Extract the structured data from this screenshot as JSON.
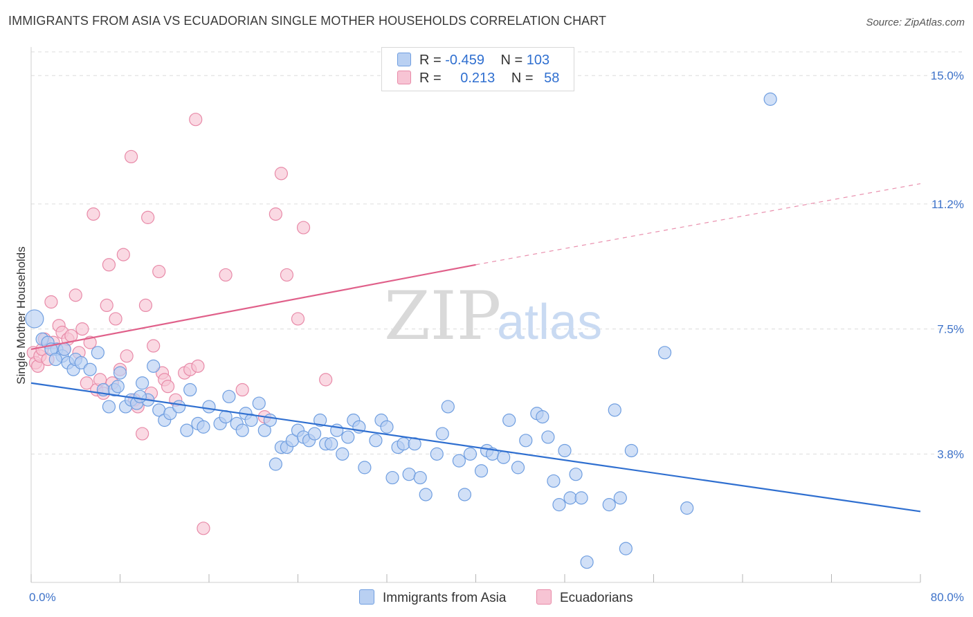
{
  "title": "IMMIGRANTS FROM ASIA VS ECUADORIAN SINGLE MOTHER HOUSEHOLDS CORRELATION CHART",
  "source": "Source: ZipAtlas.com",
  "watermark": {
    "zip": "ZIP",
    "atlas": "atlas"
  },
  "legend": {
    "rows": [
      {
        "r_label": "R =",
        "r_value": "-0.459",
        "n_label": "N =",
        "n_value": "103"
      },
      {
        "r_label": "R =",
        "r_value": "0.213",
        "n_label": "N =",
        "n_value": "58"
      }
    ]
  },
  "colors": {
    "blue_fill": "#b9d0f2",
    "blue_stroke": "#6f9ee0",
    "blue_line": "#2f6fd0",
    "pink_fill": "#f7c4d4",
    "pink_stroke": "#e88aa8",
    "pink_line": "#e0608a",
    "tick_text": "#3d72c9",
    "grid": "#dcdcdc"
  },
  "chart_data": {
    "type": "scatter",
    "xlabel": "",
    "ylabel": "Single Mother Households",
    "xlim": [
      0,
      80
    ],
    "ylim": [
      0,
      15.7
    ],
    "x_tick_labels": [
      "0.0%",
      "80.0%"
    ],
    "y_ticks": [
      3.8,
      7.5,
      11.2,
      15.0
    ],
    "y_tick_labels": [
      "3.8%",
      "7.5%",
      "11.2%",
      "15.0%"
    ],
    "grid": true,
    "legend_position": "bottom-center",
    "series": [
      {
        "name": "Immigrants from Asia",
        "color": "#b9d0f2",
        "trend": {
          "x": [
            0,
            80
          ],
          "y": [
            5.9,
            2.1
          ],
          "style": "solid"
        },
        "points": [
          [
            0.3,
            7.8
          ],
          [
            1.0,
            7.2
          ],
          [
            1.5,
            7.1
          ],
          [
            2.3,
            6.9
          ],
          [
            2.8,
            6.7
          ],
          [
            3.3,
            6.5
          ],
          [
            3.8,
            6.3
          ],
          [
            4.0,
            6.6
          ],
          [
            4.5,
            6.5
          ],
          [
            5.3,
            6.3
          ],
          [
            6.0,
            6.8
          ],
          [
            6.5,
            5.7
          ],
          [
            7.0,
            5.2
          ],
          [
            7.5,
            5.7
          ],
          [
            8.0,
            6.2
          ],
          [
            8.5,
            5.2
          ],
          [
            9.0,
            5.4
          ],
          [
            9.5,
            5.3
          ],
          [
            10.0,
            5.9
          ],
          [
            10.5,
            5.4
          ],
          [
            11.0,
            6.4
          ],
          [
            11.5,
            5.1
          ],
          [
            12.0,
            4.8
          ],
          [
            12.5,
            5.0
          ],
          [
            13.3,
            5.2
          ],
          [
            14.0,
            4.5
          ],
          [
            14.3,
            5.7
          ],
          [
            15.0,
            4.7
          ],
          [
            15.5,
            4.6
          ],
          [
            16.0,
            5.2
          ],
          [
            17.0,
            4.7
          ],
          [
            17.5,
            4.9
          ],
          [
            17.8,
            5.5
          ],
          [
            18.5,
            4.7
          ],
          [
            19.0,
            4.5
          ],
          [
            19.3,
            5.0
          ],
          [
            19.8,
            4.8
          ],
          [
            20.5,
            5.3
          ],
          [
            21.0,
            4.5
          ],
          [
            21.5,
            4.8
          ],
          [
            22.0,
            3.5
          ],
          [
            22.5,
            4.0
          ],
          [
            23.0,
            4.0
          ],
          [
            23.5,
            4.2
          ],
          [
            24.0,
            4.5
          ],
          [
            24.5,
            4.3
          ],
          [
            25.0,
            4.2
          ],
          [
            25.5,
            4.4
          ],
          [
            26.0,
            4.8
          ],
          [
            26.5,
            4.1
          ],
          [
            27.0,
            4.1
          ],
          [
            27.5,
            4.5
          ],
          [
            28.0,
            3.8
          ],
          [
            28.5,
            4.3
          ],
          [
            29.0,
            4.8
          ],
          [
            29.5,
            4.6
          ],
          [
            30.0,
            3.4
          ],
          [
            31.0,
            4.2
          ],
          [
            31.5,
            4.8
          ],
          [
            32.0,
            4.6
          ],
          [
            32.5,
            3.1
          ],
          [
            33.0,
            4.0
          ],
          [
            33.5,
            4.1
          ],
          [
            34.0,
            3.2
          ],
          [
            34.5,
            4.1
          ],
          [
            35.0,
            3.1
          ],
          [
            35.5,
            2.6
          ],
          [
            36.5,
            3.8
          ],
          [
            37.0,
            4.4
          ],
          [
            37.5,
            5.2
          ],
          [
            38.5,
            3.6
          ],
          [
            39.0,
            2.6
          ],
          [
            39.5,
            3.8
          ],
          [
            40.5,
            3.3
          ],
          [
            41.0,
            3.9
          ],
          [
            41.5,
            3.8
          ],
          [
            42.5,
            3.7
          ],
          [
            43.0,
            4.8
          ],
          [
            43.8,
            3.4
          ],
          [
            44.5,
            4.2
          ],
          [
            45.5,
            5.0
          ],
          [
            46.0,
            4.9
          ],
          [
            46.5,
            4.3
          ],
          [
            47.0,
            3.0
          ],
          [
            47.5,
            2.3
          ],
          [
            48.0,
            3.9
          ],
          [
            48.5,
            2.5
          ],
          [
            49.0,
            3.2
          ],
          [
            49.5,
            2.5
          ],
          [
            50.0,
            0.6
          ],
          [
            52.0,
            2.3
          ],
          [
            52.5,
            5.1
          ],
          [
            53.0,
            2.5
          ],
          [
            53.5,
            1.0
          ],
          [
            54.0,
            3.9
          ],
          [
            57.0,
            6.8
          ],
          [
            59.0,
            2.2
          ],
          [
            66.5,
            14.3
          ],
          [
            1.8,
            6.9
          ],
          [
            2.2,
            6.6
          ],
          [
            3.0,
            6.9
          ],
          [
            7.8,
            5.8
          ],
          [
            9.8,
            5.5
          ]
        ]
      },
      {
        "name": "Ecuadorians",
        "color": "#f7c4d4",
        "trend": {
          "x": [
            0,
            40,
            80
          ],
          "y": [
            6.9,
            9.4,
            11.8
          ],
          "style": "solid-then-dashed"
        },
        "points": [
          [
            0.2,
            6.8
          ],
          [
            0.4,
            6.5
          ],
          [
            0.6,
            6.4
          ],
          [
            0.8,
            6.7
          ],
          [
            1.0,
            6.9
          ],
          [
            1.2,
            7.2
          ],
          [
            1.5,
            6.6
          ],
          [
            1.8,
            8.3
          ],
          [
            2.0,
            7.1
          ],
          [
            2.5,
            7.6
          ],
          [
            2.8,
            7.4
          ],
          [
            3.0,
            6.9
          ],
          [
            3.3,
            7.2
          ],
          [
            3.6,
            7.3
          ],
          [
            4.0,
            8.5
          ],
          [
            4.3,
            6.8
          ],
          [
            4.6,
            7.5
          ],
          [
            5.0,
            5.9
          ],
          [
            5.3,
            7.1
          ],
          [
            5.6,
            10.9
          ],
          [
            5.9,
            5.7
          ],
          [
            6.2,
            6.0
          ],
          [
            6.5,
            5.6
          ],
          [
            6.8,
            8.2
          ],
          [
            7.0,
            9.4
          ],
          [
            7.3,
            5.9
          ],
          [
            7.6,
            7.8
          ],
          [
            8.0,
            6.3
          ],
          [
            8.3,
            9.7
          ],
          [
            8.6,
            6.7
          ],
          [
            9.0,
            12.6
          ],
          [
            9.3,
            5.4
          ],
          [
            9.6,
            5.2
          ],
          [
            10.0,
            4.4
          ],
          [
            10.3,
            8.2
          ],
          [
            10.5,
            10.8
          ],
          [
            10.8,
            5.6
          ],
          [
            11.0,
            7.0
          ],
          [
            11.5,
            9.2
          ],
          [
            11.8,
            6.2
          ],
          [
            12.0,
            6.0
          ],
          [
            12.3,
            5.8
          ],
          [
            13.0,
            5.4
          ],
          [
            13.8,
            6.2
          ],
          [
            14.3,
            6.3
          ],
          [
            14.8,
            13.7
          ],
          [
            15.0,
            6.4
          ],
          [
            15.5,
            1.6
          ],
          [
            17.5,
            9.1
          ],
          [
            19.0,
            5.7
          ],
          [
            21.0,
            4.9
          ],
          [
            22.0,
            10.9
          ],
          [
            22.5,
            12.1
          ],
          [
            23.0,
            9.1
          ],
          [
            24.0,
            7.8
          ],
          [
            24.5,
            10.5
          ],
          [
            26.5,
            6.0
          ],
          [
            37.0,
            15.1
          ]
        ]
      }
    ]
  }
}
